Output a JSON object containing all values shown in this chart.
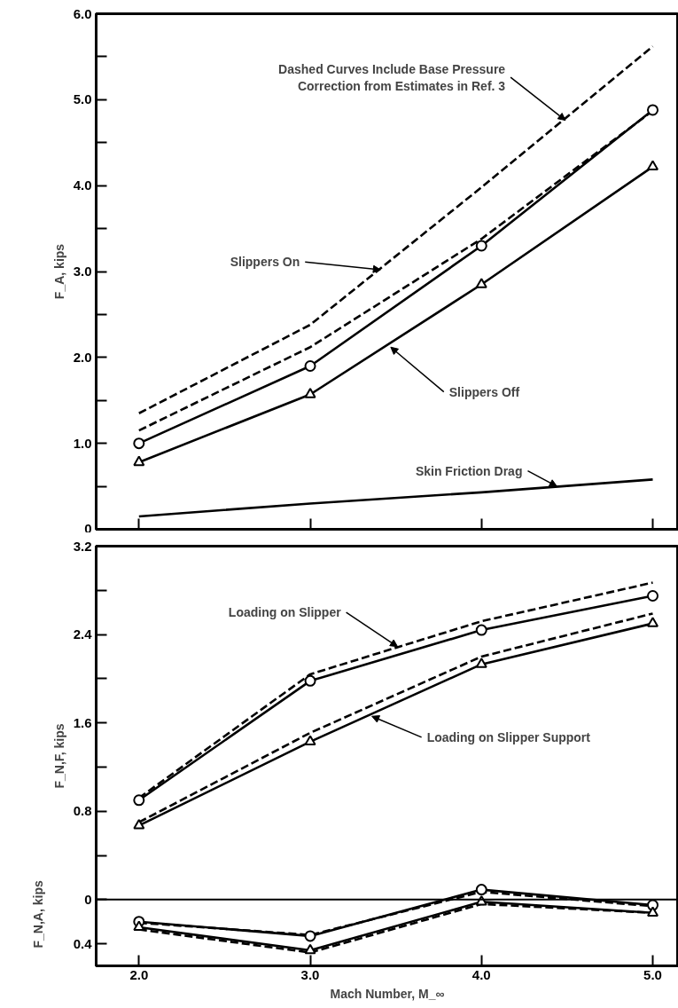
{
  "chart_data": [
    {
      "type": "line",
      "ylabel": "F_A, kips",
      "xlim": [
        1.75,
        5.15
      ],
      "ylim": [
        0,
        6
      ],
      "x": [
        2,
        3,
        4,
        5
      ],
      "xticks": [
        {
          "value": 2,
          "label": null
        },
        {
          "value": 3,
          "label": null
        },
        {
          "value": 4,
          "label": null
        },
        {
          "value": 5,
          "label": null
        }
      ],
      "yticks": [
        0,
        {
          "value": 0.5,
          "label": null
        },
        {
          "value": 1,
          "label": "1.0"
        },
        {
          "value": 1.5,
          "label": null
        },
        {
          "value": 2,
          "label": "2.0"
        },
        {
          "value": 2.5,
          "label": null
        },
        {
          "value": 3,
          "label": "3.0"
        },
        {
          "value": 3.5,
          "label": null
        },
        {
          "value": 4,
          "label": "4.0"
        },
        {
          "value": 4.5,
          "label": null
        },
        {
          "value": 5,
          "label": "5.0"
        },
        {
          "value": 5.5,
          "label": null
        },
        {
          "value": 6,
          "label": "6.0"
        }
      ],
      "tick_labels": "y",
      "series": [
        {
          "color": "#000000",
          "values": [
            1.35,
            2.38,
            3.98,
            5.62
          ],
          "line_style": "dashed",
          "marker": "none"
        },
        {
          "color": "#000000",
          "values": [
            1.15,
            2.12,
            3.38,
            4.87
          ],
          "line_style": "dashed",
          "marker": "none"
        },
        {
          "color": "#000000",
          "values": [
            1.0,
            1.9,
            3.3,
            4.88
          ],
          "line_style": "solid",
          "marker": "circle"
        },
        {
          "color": "#000000",
          "values": [
            0.78,
            1.57,
            2.85,
            4.22
          ],
          "line_style": "solid",
          "marker": "triangle"
        },
        {
          "color": "#000000",
          "values": [
            0.15,
            0.3,
            0.43,
            0.58
          ],
          "line_style": "solid",
          "marker": "none"
        }
      ],
      "annotations": [
        {
          "text": "Dashed Curves Include Base Pressure\nCorrection from Estimates in Ref. 3",
          "x": 4.49,
          "y": 4.76
        },
        {
          "text": "Slippers On",
          "x": 3.41,
          "y": 3.02
        },
        {
          "text": "Slippers Off",
          "x": 3.47,
          "y": 2.12
        },
        {
          "text": "Skin Friction Drag",
          "x": 4.44,
          "y": 0.5
        }
      ]
    },
    {
      "type": "line",
      "ylabel": "F_N,F, kips",
      "xlabel": "Mach Number, M_∞",
      "xlim": [
        1.75,
        5.15
      ],
      "ylim": [
        -0.6,
        3.2
      ],
      "x": [
        2,
        3,
        4,
        5
      ],
      "xticks": [
        {
          "value": 2,
          "label": "2.0"
        },
        {
          "value": 3,
          "label": "3.0"
        },
        {
          "value": 4,
          "label": "4.0"
        },
        {
          "value": 5,
          "label": "5.0"
        }
      ],
      "yticks": [
        {
          "value": -0.4,
          "label": "0.4"
        },
        0,
        {
          "value": 0.4,
          "label": null
        },
        0.8,
        {
          "value": 1.2,
          "label": null
        },
        1.6,
        {
          "value": 2.0,
          "label": null
        },
        2.4,
        {
          "value": 2.8,
          "label": null
        },
        3.2
      ],
      "series": [
        {
          "color": "#000000",
          "values": [
            0.92,
            2.04,
            2.52,
            2.87
          ],
          "line_style": "dashed",
          "marker": "none"
        },
        {
          "color": "#000000",
          "values": [
            0.9,
            1.98,
            2.44,
            2.75
          ],
          "line_style": "solid",
          "marker": "circle"
        },
        {
          "color": "#000000",
          "values": [
            0.7,
            1.51,
            2.2,
            2.59
          ],
          "line_style": "dashed",
          "marker": "none"
        },
        {
          "color": "#000000",
          "values": [
            0.67,
            1.43,
            2.13,
            2.5
          ],
          "line_style": "solid",
          "marker": "triangle"
        },
        {
          "color": "#000000",
          "values": [
            -0.21,
            -0.32,
            0.07,
            -0.06
          ],
          "line_style": "dashed",
          "marker": "none"
        },
        {
          "color": "#000000",
          "values": [
            -0.2,
            -0.33,
            0.09,
            -0.05
          ],
          "line_style": "solid",
          "marker": "circle"
        },
        {
          "color": "#000000",
          "values": [
            -0.27,
            -0.48,
            -0.04,
            -0.12
          ],
          "line_style": "dashed",
          "marker": "none"
        },
        {
          "color": "#000000",
          "values": [
            -0.25,
            -0.46,
            -0.02,
            -0.12
          ],
          "line_style": "solid",
          "marker": "triangle"
        }
      ],
      "ref_lines": [
        {
          "axis": "y",
          "value": 0,
          "color": "#000000"
        }
      ],
      "annotations": [
        {
          "text": "Loading on Slipper",
          "x": 3.51,
          "y": 2.29
        },
        {
          "text": "Loading on Slipper Support",
          "x": 3.36,
          "y": 1.66
        },
        "F_N,A, kips"
      ]
    }
  ]
}
